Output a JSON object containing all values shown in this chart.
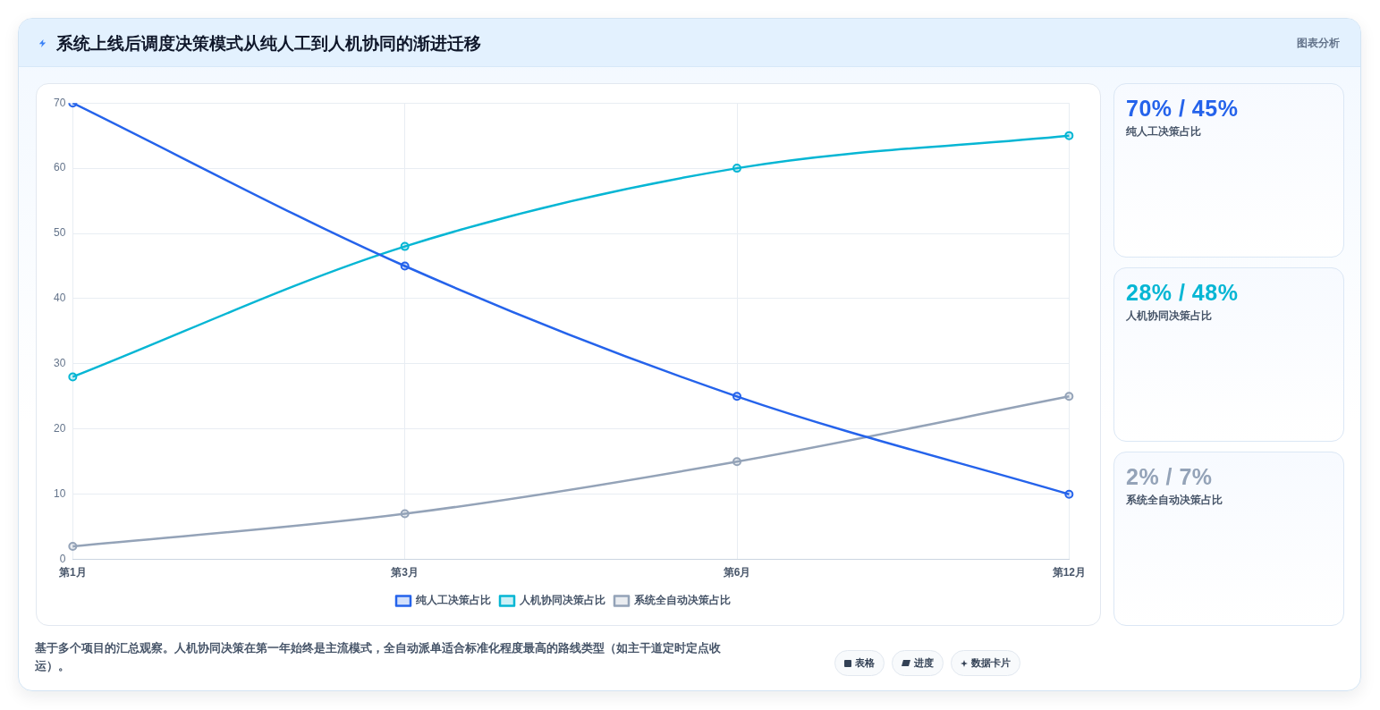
{
  "chart_data": [
    {
      "type": "line",
      "title": "系统上线后调度决策模式从纯人工到人机协同的渐进迁移",
      "categories": [
        "第1月",
        "第3月",
        "第6月",
        "第12月"
      ],
      "series": [
        {
          "name": "纯人工决策占比",
          "color": "#2563eb",
          "values": [
            70,
            45,
            25,
            10
          ]
        },
        {
          "name": "人机协同决策占比",
          "color": "#06b6d4",
          "values": [
            28,
            48,
            60,
            65
          ]
        },
        {
          "name": "系统全自动决策占比",
          "color": "#94a3b8",
          "values": [
            2,
            7,
            15,
            25
          ]
        }
      ],
      "ylim": [
        0,
        70
      ],
      "yticks": [
        0,
        10,
        20,
        30,
        40,
        50,
        60,
        70
      ],
      "grid": true,
      "legend": "bottom",
      "marker": "circle",
      "annotations": [
        "基于多个项目的汇总观察。人机协同决策在第一年始终是主流模式，全自动派单适合标准化程度最高的路线类型（如主干道定时定点收运）。"
      ]
    },
    {
      "type": "other",
      "title": "70% / 45%",
      "subtitle": "纯人工决策占比",
      "color": "#2563eb"
    },
    {
      "type": "other",
      "title": "28% / 48%",
      "subtitle": "人机协同决策占比",
      "color": "#06b6d4"
    },
    {
      "type": "other",
      "title": "2% / 7%",
      "subtitle": "系统全自动决策占比",
      "color": "#94a3b8"
    },
    {
      "type": "other",
      "title": "图表分析",
      "annotations": [
        "表格",
        "进度",
        "数据卡片"
      ]
    }
  ]
}
